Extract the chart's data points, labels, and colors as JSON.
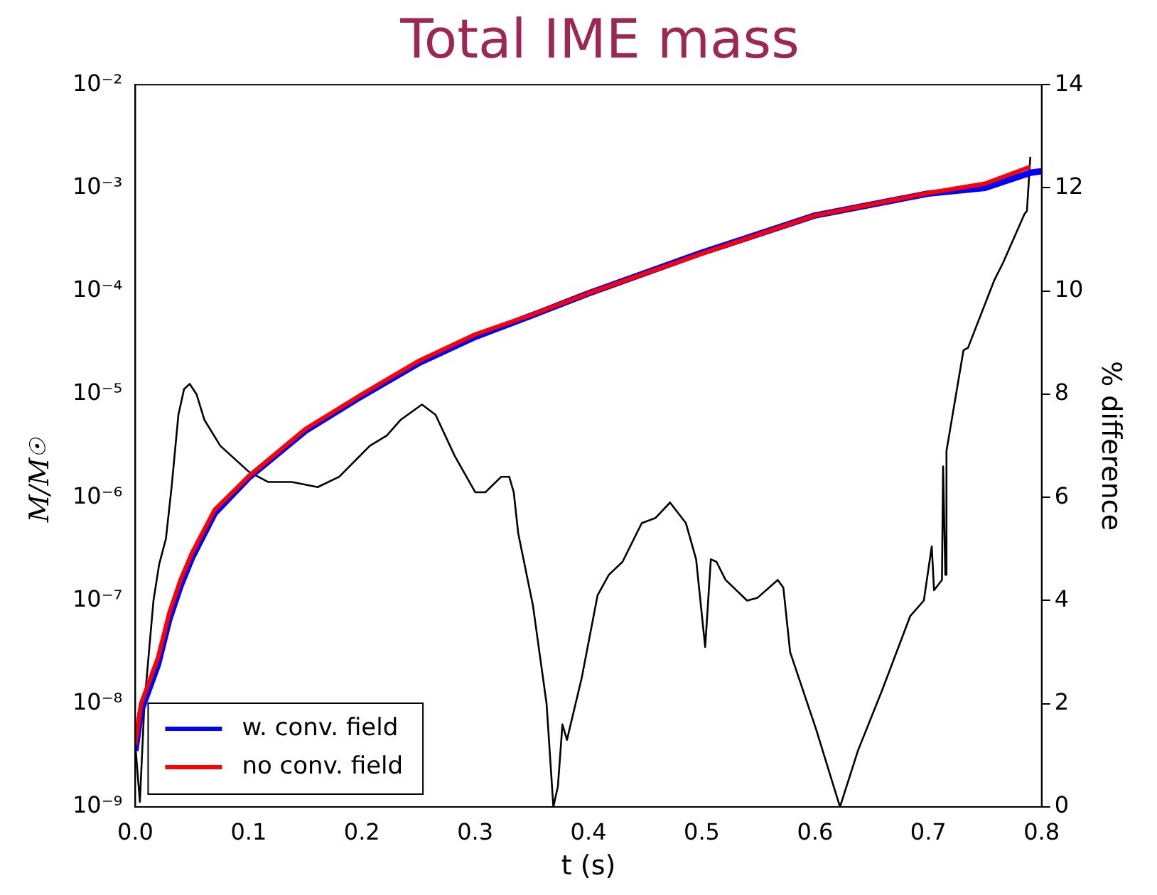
{
  "chart_data": {
    "type": "line",
    "title": "Total IME mass",
    "xlabel": "t (s)",
    "ylabel": "M/M$_{☉}$",
    "y2label": "% difference",
    "xlim": [
      0,
      0.8
    ],
    "xticks": [
      {
        "value": 0,
        "label": "0.0"
      },
      0.1,
      0.2,
      0.3,
      0.4,
      0.5,
      0.6,
      0.7,
      0.8
    ],
    "ylim": [
      1e-09,
      0.01
    ],
    "yticks": [
      {
        "value": 1e-09,
        "label": "10⁻⁹"
      },
      {
        "value": 1e-08,
        "label": "10⁻⁸"
      },
      {
        "value": 1e-07,
        "label": "10⁻⁷"
      },
      {
        "value": 1e-06,
        "label": "10⁻⁶"
      },
      {
        "value": 1e-05,
        "label": "10⁻⁵"
      },
      {
        "value": 0.0001,
        "label": "10⁻⁴"
      },
      {
        "value": 0.001,
        "label": "10⁻³"
      },
      {
        "value": 0.01,
        "label": "10⁻²"
      }
    ],
    "y2lim": [
      0,
      14
    ],
    "y2ticks": [
      0,
      2,
      4,
      6,
      8,
      10,
      12,
      14
    ],
    "log": "y",
    "legend": "bottom left",
    "grid": false,
    "series": [
      {
        "name": "w. conv. field",
        "color": "#0000ff",
        "x": [
          0,
          0.005,
          0.02,
          0.03,
          0.04,
          0.05,
          0.07,
          0.1,
          0.15,
          0.2,
          0.25,
          0.3,
          0.35,
          0.4,
          0.5,
          0.6,
          0.7,
          0.75,
          0.79,
          0.8
        ],
        "values": [
          3.5e-09,
          8.5e-09,
          2.4e-08,
          6.6e-08,
          1.4e-07,
          2.6e-07,
          7e-07,
          1.55e-06,
          4.4e-06,
          9.6e-06,
          2e-05,
          3.6e-05,
          5.8e-05,
          9.5e-05,
          0.000235,
          0.00054,
          0.00088,
          0.001,
          0.0014,
          0.00145
        ]
      },
      {
        "name": "no conv. field",
        "color": "#ff0000",
        "x": [
          0,
          0.005,
          0.02,
          0.03,
          0.04,
          0.05,
          0.07,
          0.1,
          0.15,
          0.2,
          0.25,
          0.3,
          0.35,
          0.4,
          0.5,
          0.6,
          0.7,
          0.75,
          0.79
        ],
        "values": [
          4e-09,
          1e-08,
          2.8e-08,
          7.6e-08,
          1.6e-07,
          2.9e-07,
          7.6e-07,
          1.6e-06,
          4.6e-06,
          1e-05,
          2.1e-05,
          3.8e-05,
          5.9e-05,
          9.5e-05,
          0.00023,
          0.00054,
          0.00089,
          0.0011,
          0.0016
        ]
      },
      {
        "color": "#000000",
        "axis": "y2",
        "x": [
          0,
          0.004,
          0.008,
          0.016,
          0.021,
          0.027,
          0.032,
          0.038,
          0.043,
          0.048,
          0.054,
          0.061,
          0.075,
          0.085,
          0.1,
          0.117,
          0.138,
          0.161,
          0.18,
          0.207,
          0.222,
          0.234,
          0.253,
          0.265,
          0.282,
          0.3,
          0.309,
          0.323,
          0.33,
          0.334,
          0.338,
          0.351,
          0.363,
          0.369,
          0.373,
          0.377,
          0.381,
          0.394,
          0.408,
          0.418,
          0.43,
          0.447,
          0.459,
          0.472,
          0.486,
          0.495,
          0.503,
          0.508,
          0.513,
          0.521,
          0.54,
          0.549,
          0.567,
          0.572,
          0.578,
          0.601,
          0.622,
          0.638,
          0.659,
          0.684,
          0.696,
          0.703,
          0.705,
          0.712,
          0.713,
          0.715,
          0.716,
          0.731,
          0.735,
          0.758,
          0.766,
          0.785,
          0.787,
          0.79
        ],
        "values": [
          1.2,
          0.1,
          2.0,
          4.0,
          4.7,
          5.2,
          6.2,
          7.6,
          8.1,
          8.2,
          8.0,
          7.5,
          7.0,
          6.8,
          6.5,
          6.3,
          6.3,
          6.2,
          6.4,
          7.0,
          7.2,
          7.5,
          7.8,
          7.6,
          6.8,
          6.1,
          6.1,
          6.4,
          6.4,
          6.1,
          5.3,
          3.9,
          2.0,
          0.0,
          0.4,
          1.6,
          1.3,
          2.5,
          4.1,
          4.5,
          4.75,
          5.5,
          5.6,
          5.9,
          5.5,
          4.8,
          3.1,
          4.8,
          4.75,
          4.4,
          4.0,
          4.05,
          4.4,
          4.25,
          3.0,
          1.5,
          0.0,
          1.1,
          2.25,
          3.7,
          4.0,
          5.05,
          4.2,
          4.4,
          6.6,
          4.5,
          6.9,
          8.85,
          8.9,
          10.2,
          10.55,
          11.5,
          11.55,
          12.6
        ]
      }
    ]
  }
}
